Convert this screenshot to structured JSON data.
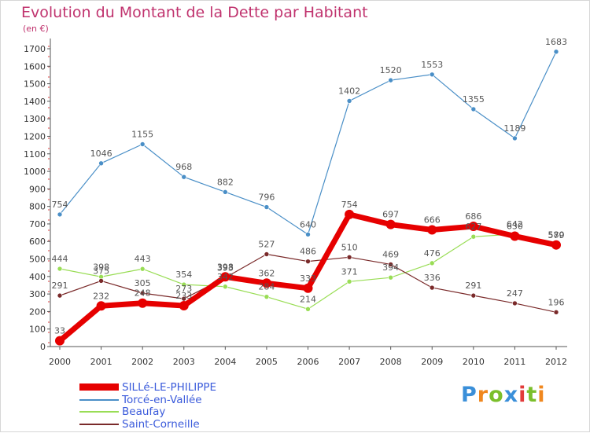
{
  "title": "Evolution du Montant de la Dette par Habitant",
  "subtitle": "(en €)",
  "logo": {
    "text": "Proxiti",
    "colors": [
      "#3a8fd9",
      "#f0871e",
      "#7bbf2b",
      "#3a8fd9",
      "#e23b3b",
      "#7bbf2b",
      "#f0871e"
    ]
  },
  "chart_data": {
    "type": "line",
    "x": [
      "2000",
      "2001",
      "2002",
      "2003",
      "2004",
      "2005",
      "2006",
      "2007",
      "2008",
      "2009",
      "2010",
      "2011",
      "2012"
    ],
    "ylim": [
      0,
      1700
    ],
    "yticks": [
      0,
      100,
      200,
      300,
      400,
      500,
      600,
      700,
      800,
      900,
      1000,
      1100,
      1200,
      1300,
      1400,
      1500,
      1600,
      1700
    ],
    "grid": false,
    "legend_position": "bottom-left",
    "series": [
      {
        "name": "Torcé-en-Vallée",
        "color": "#4a8fc7",
        "values": [
          754,
          1046,
          1155,
          968,
          882,
          796,
          640,
          1402,
          1520,
          1553,
          1355,
          1189,
          1683
        ]
      },
      {
        "name": "Beaufay",
        "color": "#99dd55",
        "values": [
          444,
          398,
          443,
          354,
          342,
          284,
          214,
          371,
          394,
          476,
          627,
          642,
          579
        ]
      },
      {
        "name": "Saint-Corneille",
        "color": "#7a2a2a",
        "values": [
          291,
          375,
          305,
          273,
          393,
          527,
          486,
          510,
          469,
          336,
          291,
          247,
          196
        ]
      },
      {
        "name": "SILLé-LE-PHILIPPE",
        "color": "#e60000",
        "values": [
          33,
          232,
          248,
          233,
          398,
          362,
          333,
          754,
          697,
          666,
          686,
          630,
          580
        ]
      }
    ]
  }
}
